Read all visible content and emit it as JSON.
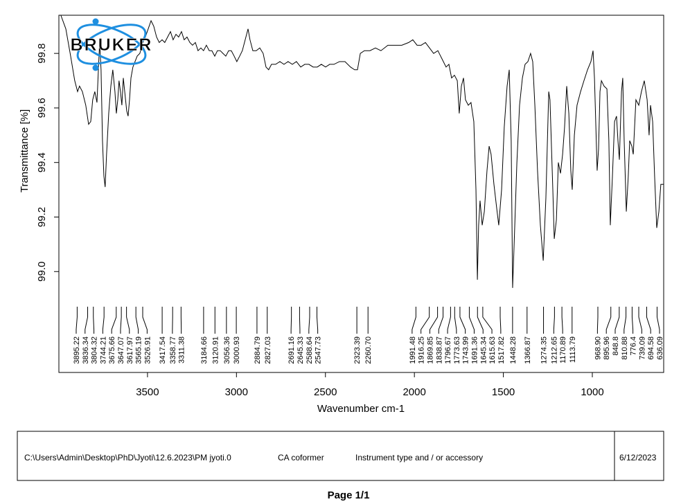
{
  "chart_data": {
    "type": "line",
    "logo": "BRUKER",
    "x_label": "Wavenumber cm-1",
    "y_label": "Transmittance [%]",
    "xlim": [
      3998,
      599
    ],
    "ylim": [
      98.63,
      99.94
    ],
    "xticks": [
      3500,
      3000,
      2500,
      2000,
      1500,
      1000
    ],
    "yticks": [
      {
        "value": 99,
        "label": "99.0"
      },
      99.2,
      99.4,
      99.6,
      99.8
    ],
    "color": "#000000",
    "x": [
      3987,
      3959,
      3932,
      3909,
      3893,
      3882,
      3866,
      3847,
      3831,
      3819,
      3808,
      3796,
      3784,
      3776,
      3769,
      3761,
      3753,
      3745,
      3738,
      3730,
      3718,
      3706,
      3695,
      3683,
      3675,
      3667,
      3660,
      3652,
      3644,
      3636,
      3628,
      3617,
      3609,
      3601,
      3593,
      3582,
      3570,
      3558,
      3543,
      3527,
      3512,
      3496,
      3480,
      3465,
      3449,
      3434,
      3418,
      3403,
      3387,
      3371,
      3356,
      3340,
      3325,
      3309,
      3294,
      3278,
      3262,
      3247,
      3231,
      3216,
      3200,
      3185,
      3169,
      3153,
      3138,
      3122,
      3107,
      3091,
      3076,
      3060,
      3044,
      3029,
      3013,
      2998,
      2982,
      2967,
      2951,
      2935,
      2924,
      2908,
      2889,
      2869,
      2850,
      2834,
      2819,
      2803,
      2780,
      2756,
      2733,
      2710,
      2686,
      2663,
      2639,
      2616,
      2593,
      2569,
      2546,
      2523,
      2499,
      2476,
      2452,
      2421,
      2390,
      2359,
      2336,
      2320,
      2304,
      2281,
      2250,
      2219,
      2188,
      2149,
      2110,
      2071,
      2032,
      2009,
      1985,
      1962,
      1938,
      1915,
      1892,
      1868,
      1845,
      1822,
      1806,
      1791,
      1775,
      1759,
      1748,
      1736,
      1724,
      1713,
      1697,
      1682,
      1666,
      1654,
      1646,
      1639,
      1631,
      1619,
      1607,
      1592,
      1580,
      1569,
      1553,
      1537,
      1526,
      1510,
      1495,
      1479,
      1467,
      1456,
      1448,
      1440,
      1424,
      1409,
      1393,
      1378,
      1362,
      1347,
      1335,
      1323,
      1308,
      1292,
      1276,
      1261,
      1245,
      1238,
      1222,
      1214,
      1202,
      1191,
      1179,
      1167,
      1156,
      1144,
      1132,
      1121,
      1113,
      1101,
      1086,
      1066,
      1047,
      1027,
      1008,
      996,
      988,
      973,
      965,
      957,
      949,
      934,
      918,
      907,
      899,
      887,
      875,
      864,
      856,
      848,
      836,
      829,
      821,
      809,
      798,
      790,
      778,
      770,
      755,
      739,
      724,
      708,
      692,
      681,
      673,
      661,
      650,
      638,
      626,
      615,
      599
    ],
    "values": [
      99.94,
      99.89,
      99.79,
      99.7,
      99.66,
      99.68,
      99.66,
      99.61,
      99.54,
      99.55,
      99.63,
      99.66,
      99.62,
      99.74,
      99.84,
      99.74,
      99.48,
      99.35,
      99.31,
      99.43,
      99.58,
      99.68,
      99.74,
      99.66,
      99.58,
      99.63,
      99.7,
      99.66,
      99.61,
      99.71,
      99.66,
      99.59,
      99.57,
      99.63,
      99.71,
      99.75,
      99.77,
      99.79,
      99.8,
      99.84,
      99.86,
      99.89,
      99.92,
      99.9,
      99.86,
      99.84,
      99.85,
      99.84,
      99.86,
      99.88,
      99.85,
      99.87,
      99.86,
      99.88,
      99.85,
      99.86,
      99.84,
      99.83,
      99.84,
      99.81,
      99.82,
      99.81,
      99.83,
      99.81,
      99.81,
      99.79,
      99.81,
      99.81,
      99.8,
      99.79,
      99.81,
      99.81,
      99.79,
      99.77,
      99.79,
      99.81,
      99.85,
      99.89,
      99.85,
      99.81,
      99.81,
      99.82,
      99.8,
      99.75,
      99.74,
      99.76,
      99.76,
      99.77,
      99.76,
      99.77,
      99.76,
      99.77,
      99.75,
      99.76,
      99.76,
      99.75,
      99.75,
      99.76,
      99.75,
      99.76,
      99.76,
      99.77,
      99.77,
      99.75,
      99.74,
      99.74,
      99.8,
      99.81,
      99.81,
      99.82,
      99.81,
      99.83,
      99.83,
      99.83,
      99.84,
      99.85,
      99.83,
      99.83,
      99.84,
      99.82,
      99.8,
      99.81,
      99.78,
      99.75,
      99.76,
      99.71,
      99.72,
      99.7,
      99.58,
      99.68,
      99.71,
      99.63,
      99.61,
      99.62,
      99.55,
      99.3,
      98.97,
      99.17,
      99.26,
      99.17,
      99.22,
      99.37,
      99.46,
      99.43,
      99.32,
      99.23,
      99.17,
      99.3,
      99.53,
      99.68,
      99.74,
      99.48,
      98.94,
      99.09,
      99.4,
      99.61,
      99.71,
      99.76,
      99.77,
      99.8,
      99.77,
      99.61,
      99.37,
      99.17,
      99.04,
      99.27,
      99.66,
      99.63,
      99.3,
      99.12,
      99.19,
      99.4,
      99.36,
      99.43,
      99.53,
      99.68,
      99.58,
      99.37,
      99.3,
      99.5,
      99.61,
      99.66,
      99.7,
      99.74,
      99.77,
      99.81,
      99.71,
      99.37,
      99.45,
      99.66,
      99.7,
      99.68,
      99.67,
      99.48,
      99.17,
      99.35,
      99.55,
      99.57,
      99.48,
      99.41,
      99.66,
      99.71,
      99.48,
      99.22,
      99.35,
      99.48,
      99.46,
      99.43,
      99.63,
      99.61,
      99.66,
      99.7,
      99.63,
      99.5,
      99.61,
      99.55,
      99.35,
      99.16,
      99.22,
      99.32,
      99.32
    ],
    "peaks": [
      3895.22,
      3836.34,
      3804.32,
      3744.21,
      3675.66,
      3647.07,
      3617.97,
      3565.19,
      3526.91,
      3417.54,
      3358.77,
      3311.38,
      3184.66,
      3120.91,
      3056.36,
      3000.93,
      2884.79,
      2827.03,
      2691.16,
      2645.33,
      2588.64,
      2547.73,
      2323.39,
      {
        "value": 2260.7,
        "label": "2260.70"
      },
      1991.48,
      1916.25,
      1869.85,
      1838.87,
      1796.67,
      1773.63,
      1743.99,
      1691.36,
      1645.34,
      1615.63,
      1517.82,
      1448.28,
      1366.87,
      1274.35,
      1212.65,
      1170.89,
      1113.79,
      {
        "value": 968.9,
        "label": "968.90"
      },
      895.96,
      848.8,
      810.88,
      776.4,
      739.09,
      694.58,
      636.09
    ]
  },
  "footer": {
    "file": "C:\\Users\\Admin\\Desktop\\PhD\\Jyoti\\12.6.2023\\PM jyoti.0",
    "sample": "CA coformer",
    "instrument": "Instrument type and / or accessory",
    "date": "6/12/2023",
    "page": "Page 1/1"
  }
}
